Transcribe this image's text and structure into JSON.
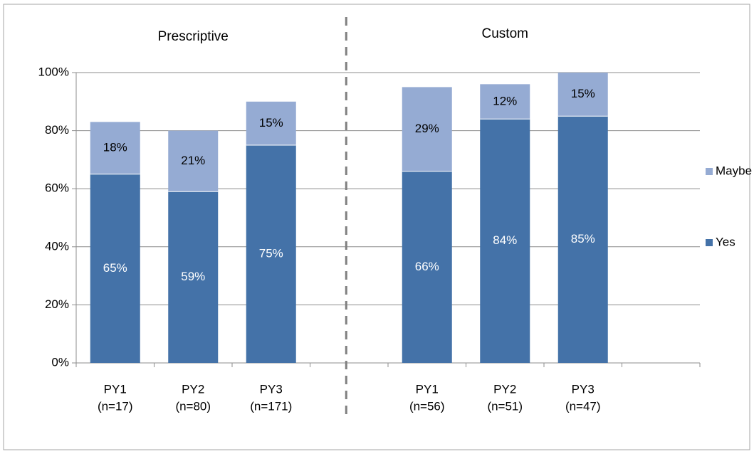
{
  "chart_data": {
    "type": "bar",
    "stacked": true,
    "groups": [
      {
        "label": "Prescriptive",
        "categories": [
          "PY1\n(n=17)",
          "PY2\n(n=80)",
          "PY3\n(n=171)"
        ]
      },
      {
        "label": "Custom",
        "categories": [
          "PY1\n(n=56)",
          "PY2\n(n=51)",
          "PY3\n(n=47)"
        ]
      }
    ],
    "category_lines": [
      [
        "PY1",
        "(n=17)"
      ],
      [
        "PY2",
        "(n=80)"
      ],
      [
        "PY3",
        "(n=171)"
      ],
      [
        "PY1",
        "(n=56)"
      ],
      [
        "PY2",
        "(n=51)"
      ],
      [
        "PY3",
        "(n=47)"
      ]
    ],
    "series": [
      {
        "name": "Yes",
        "color": "#4472A8",
        "values": [
          65,
          59,
          75,
          66,
          84,
          85
        ],
        "labels": [
          "65%",
          "59%",
          "75%",
          "66%",
          "84%",
          "85%"
        ]
      },
      {
        "name": "Maybe",
        "color": "#95ABD3",
        "values": [
          18,
          21,
          15,
          29,
          12,
          15
        ],
        "labels": [
          "18%",
          "21%",
          "15%",
          "29%",
          "12%",
          "15%"
        ]
      }
    ],
    "ylim": [
      0,
      100
    ],
    "yticks": [
      0,
      20,
      40,
      60,
      80,
      100
    ],
    "ytick_labels": [
      "0%",
      "20%",
      "40%",
      "60%",
      "80%",
      "100%"
    ],
    "grid": true,
    "legend_position": "right",
    "legend_order": [
      "Maybe",
      "Yes"
    ],
    "group_separator": "dashed"
  }
}
